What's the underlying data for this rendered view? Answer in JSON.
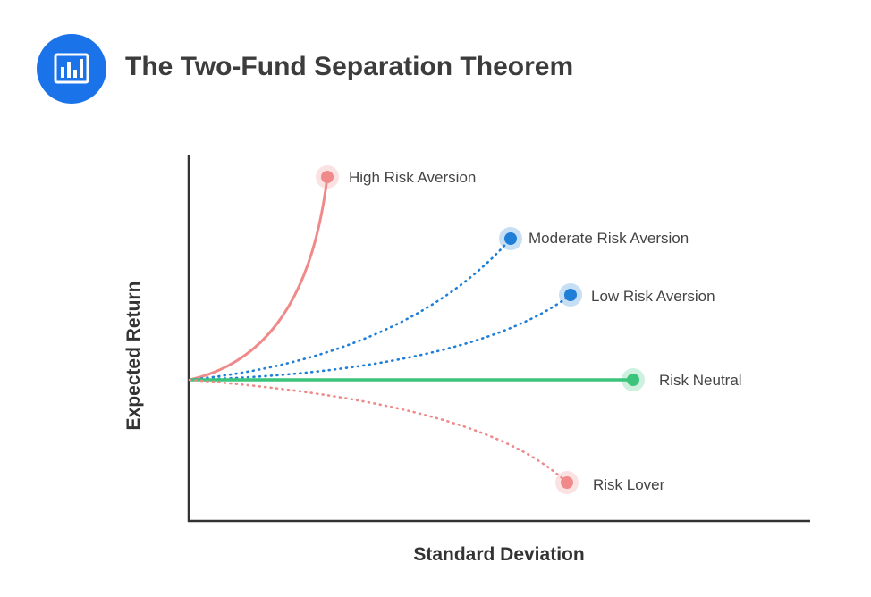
{
  "header": {
    "title": "The Two-Fund Separation Theorem",
    "icon": "bar-chart-icon",
    "icon_color": "#1a73e8"
  },
  "axes": {
    "x_label": "Standard Deviation",
    "y_label": "Expected Return"
  },
  "curves": [
    {
      "id": "high-risk-aversion",
      "label": "High Risk Aversion",
      "color": "#f08a8a",
      "style": "solid"
    },
    {
      "id": "moderate-risk-aversion",
      "label": "Moderate Risk Aversion",
      "color": "#1f7fd8",
      "style": "dotted"
    },
    {
      "id": "low-risk-aversion",
      "label": "Low Risk Aversion",
      "color": "#1f7fd8",
      "style": "dotted"
    },
    {
      "id": "risk-neutral",
      "label": "Risk Neutral",
      "color": "#3cc47c",
      "style": "solid"
    },
    {
      "id": "risk-lover",
      "label": "Risk Lover",
      "color": "#f08a8a",
      "style": "dotted"
    }
  ]
}
